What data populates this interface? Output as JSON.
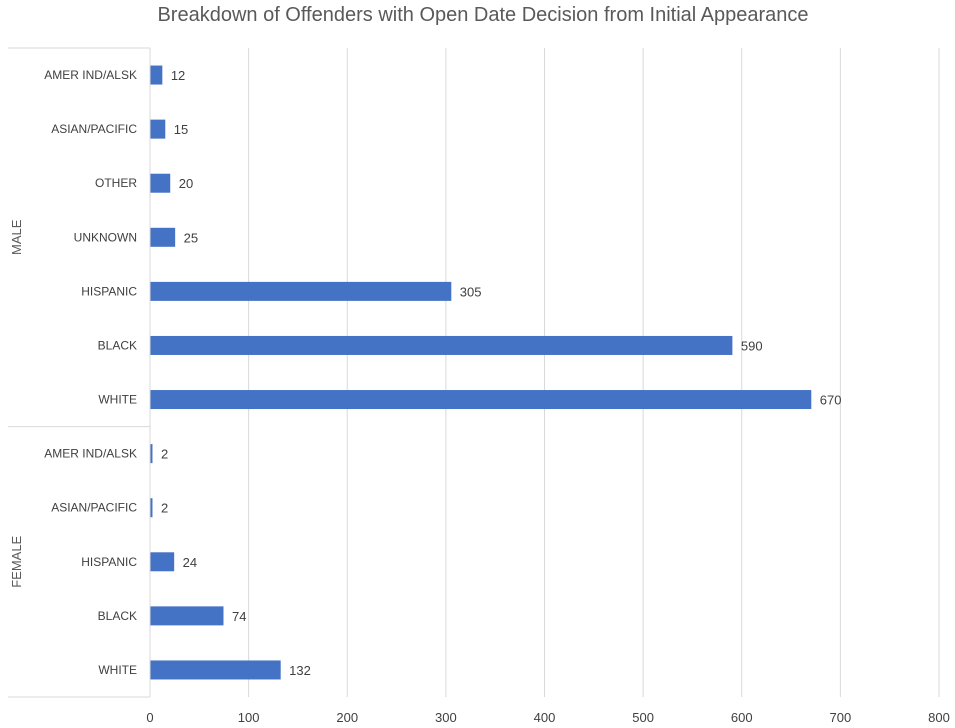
{
  "chart_data": {
    "type": "bar",
    "orientation": "horizontal",
    "title": "Breakdown of Offenders with Open Date Decision from Initial Appearance",
    "xlabel": "",
    "ylabel": "",
    "xlim": [
      0,
      800
    ],
    "ticks": [
      "0",
      "100",
      "200",
      "300",
      "400",
      "500",
      "600",
      "700",
      "800"
    ],
    "tick_values": [
      0,
      100,
      200,
      300,
      400,
      500,
      600,
      700,
      800
    ],
    "grid": true,
    "legend": "none",
    "bar_color": "#4472C4",
    "groups": [
      {
        "name": "MALE",
        "categories": [
          "AMER IND/ALSK",
          "ASIAN/PACIFIC",
          "OTHER",
          "UNKNOWN",
          "HISPANIC",
          "BLACK",
          "WHITE"
        ],
        "values": [
          12,
          15,
          20,
          25,
          305,
          590,
          670
        ],
        "value_labels": [
          "12",
          "15",
          "20",
          "25",
          "305",
          "590",
          "670"
        ]
      },
      {
        "name": "FEMALE",
        "categories": [
          "AMER IND/ALSK",
          "ASIAN/PACIFIC",
          "HISPANIC",
          "BLACK",
          "WHITE"
        ],
        "values": [
          2,
          2,
          24,
          74,
          132
        ],
        "value_labels": [
          "2",
          "2",
          "24",
          "74",
          "132"
        ]
      }
    ]
  }
}
